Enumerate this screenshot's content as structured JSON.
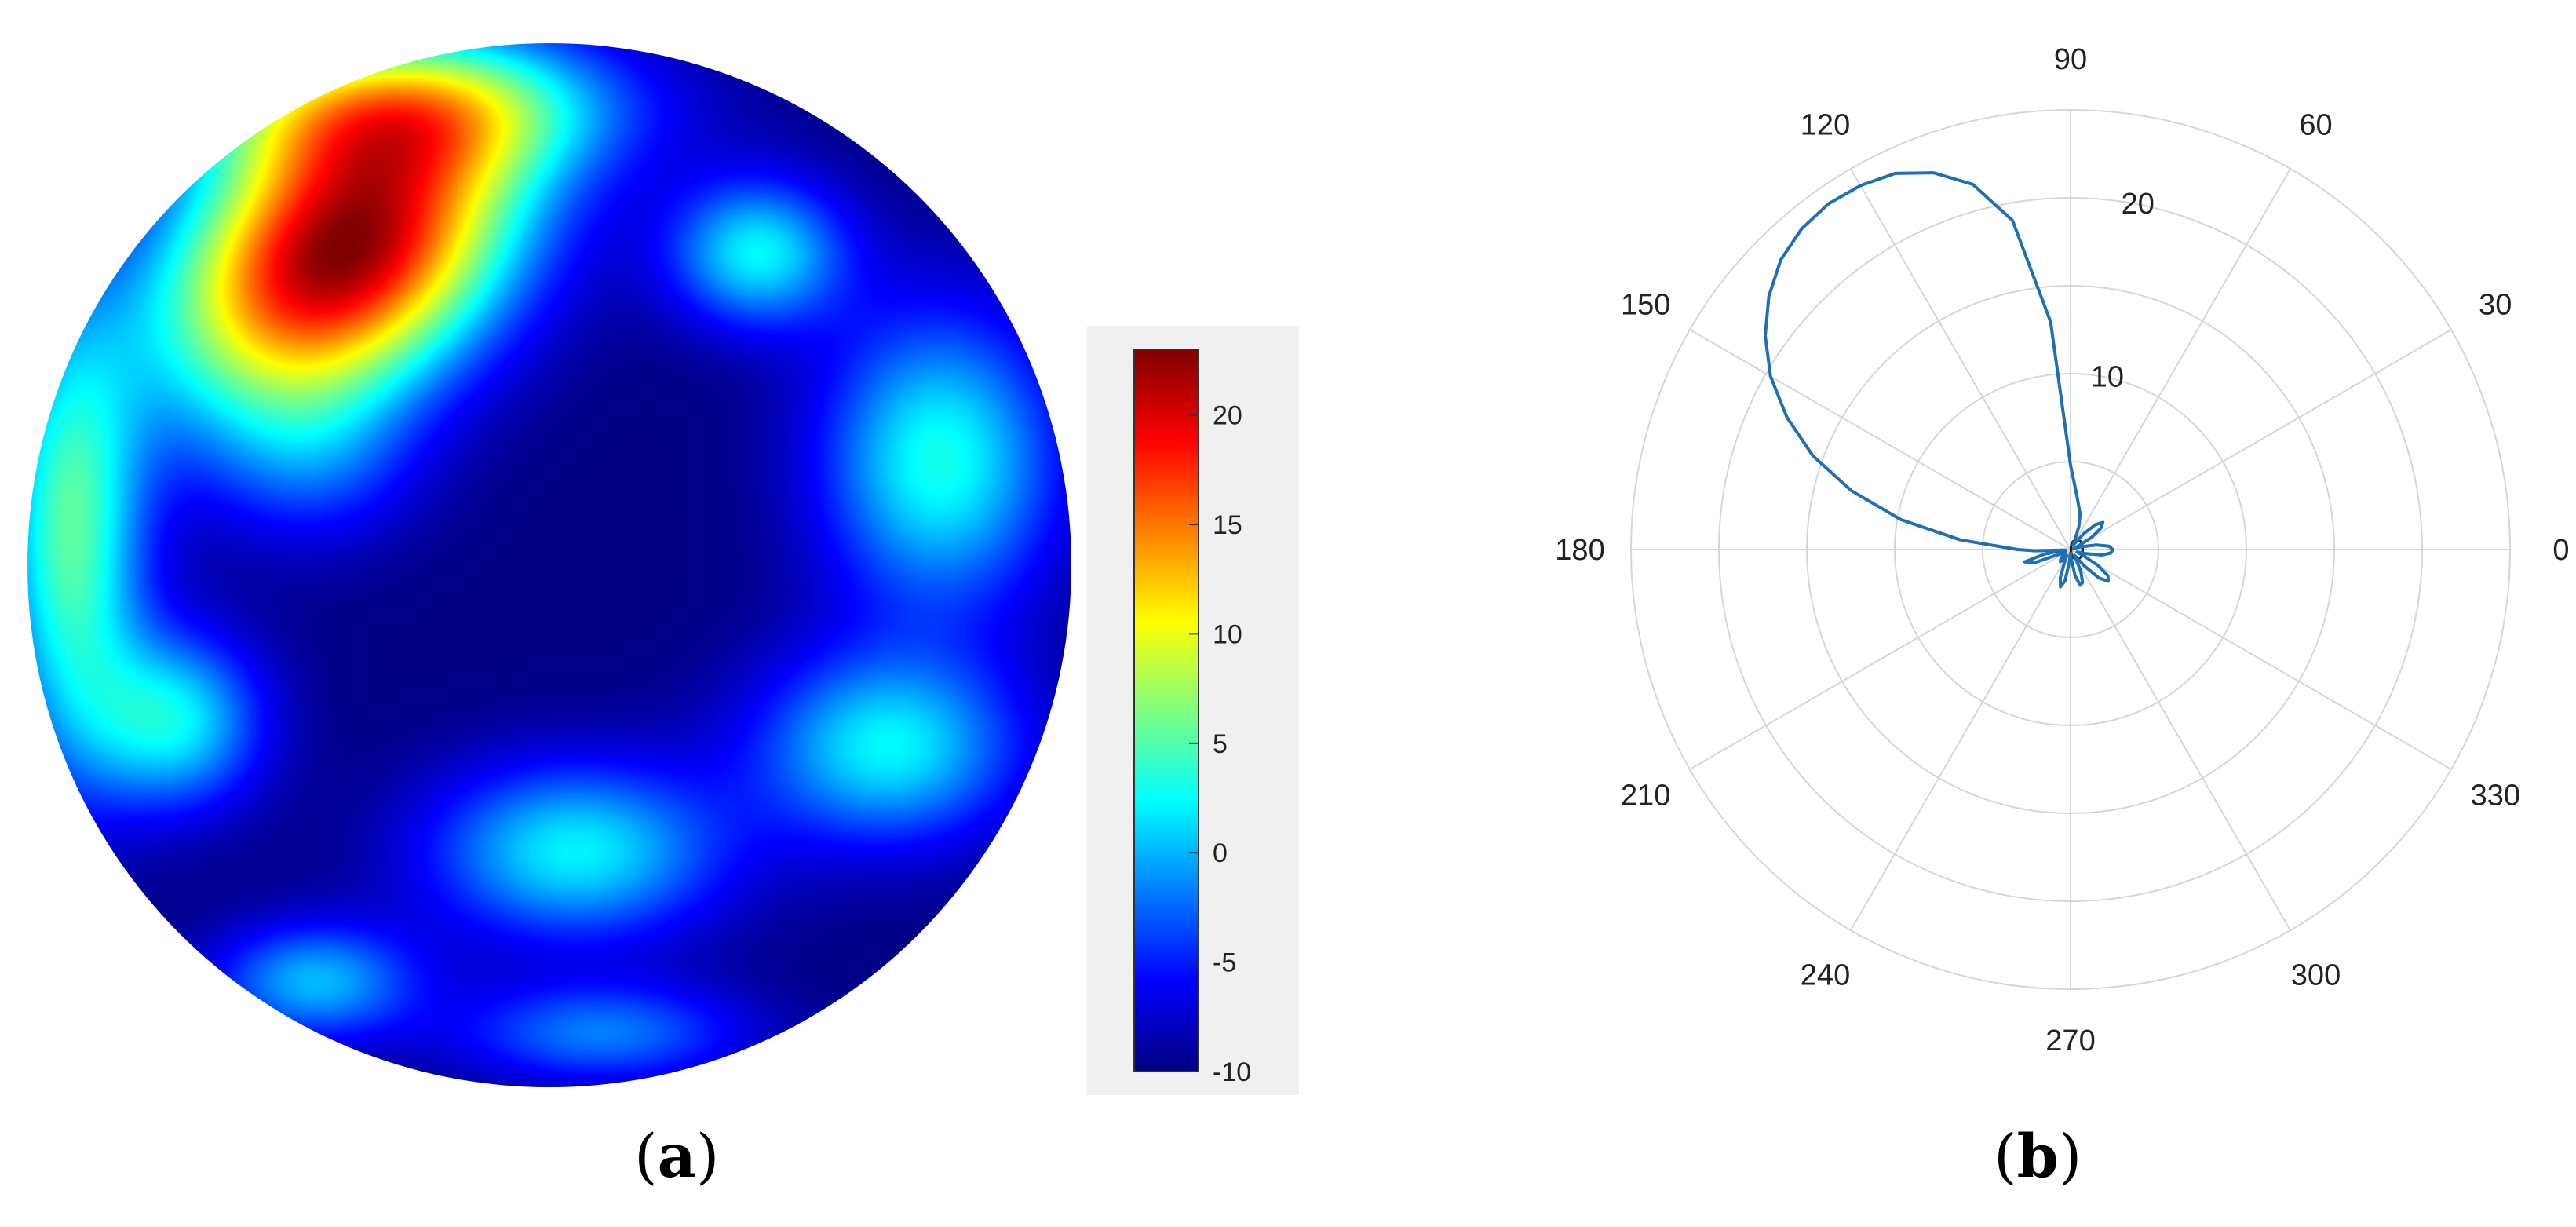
{
  "panels": {
    "a": {
      "label": "a"
    },
    "b": {
      "label": "b"
    }
  },
  "colors": {
    "polar_line": "#1f6fb5",
    "polar_grid": "#d6d6d6",
    "colorbar_bg": "#f0f0f0"
  },
  "chart_data": [
    {
      "panel": "a",
      "type": "heatmap",
      "colormap": "jet",
      "colorbar": {
        "min": -10,
        "max": 23,
        "ticks": [
          20,
          15,
          10,
          5,
          0,
          -5,
          -10
        ],
        "tick_labels": [
          "20",
          "15",
          "10",
          "5",
          "0",
          "-5",
          "-10"
        ]
      },
      "blobs": [
        {
          "u": -0.4,
          "v": -0.6,
          "sx": 0.26,
          "sy": 0.18,
          "rot": -35,
          "amp": 33
        },
        {
          "u": -0.3,
          "v": -0.88,
          "sx": 0.3,
          "sy": 0.1,
          "rot": 0,
          "amp": 14
        },
        {
          "u": -0.92,
          "v": -0.05,
          "sx": 0.1,
          "sy": 0.3,
          "rot": 0,
          "amp": 15
        },
        {
          "u": 0.4,
          "v": -0.6,
          "sx": 0.12,
          "sy": 0.1,
          "rot": 0,
          "amp": 12
        },
        {
          "u": 0.75,
          "v": -0.2,
          "sx": 0.16,
          "sy": 0.2,
          "rot": 0,
          "amp": 13
        },
        {
          "u": 0.65,
          "v": 0.35,
          "sx": 0.18,
          "sy": 0.13,
          "rot": 0,
          "amp": 12
        },
        {
          "u": 0.05,
          "v": 0.55,
          "sx": 0.2,
          "sy": 0.12,
          "rot": 0,
          "amp": 12
        },
        {
          "u": -0.72,
          "v": 0.3,
          "sx": 0.12,
          "sy": 0.12,
          "rot": 0,
          "amp": 12
        },
        {
          "u": -0.45,
          "v": 0.8,
          "sx": 0.14,
          "sy": 0.08,
          "rot": 0,
          "amp": 10
        },
        {
          "u": -0.45,
          "v": -0.2,
          "sx": 0.14,
          "sy": 0.12,
          "rot": 0,
          "amp": 5
        },
        {
          "u": 0.1,
          "v": 0.9,
          "sx": 0.2,
          "sy": 0.07,
          "rot": 0,
          "amp": 8
        }
      ],
      "background": -10
    },
    {
      "panel": "b",
      "type": "polar-line",
      "r_max": 25,
      "r_ticks": [
        0,
        10,
        20
      ],
      "r_tick_labels": [
        "0",
        "10",
        "20"
      ],
      "theta_ticks": [
        0,
        30,
        60,
        90,
        120,
        150,
        180,
        210,
        240,
        270,
        300,
        330
      ],
      "theta_tick_labels": [
        "0",
        "30",
        "60",
        "90",
        "120",
        "150",
        "180",
        "210",
        "240",
        "270",
        "300",
        "330"
      ],
      "series": [
        {
          "theta": [
            90,
            95,
            100,
            105,
            110,
            115,
            120,
            125,
            130,
            135,
            140,
            145,
            150,
            155,
            160,
            165,
            170,
            175,
            180,
            182,
            185,
            190,
            195,
            200,
            205,
            210,
            215,
            220,
            225,
            230,
            235,
            240,
            245,
            250,
            255,
            260,
            265,
            270,
            275,
            280,
            285,
            290,
            295,
            300,
            305,
            310,
            315,
            320,
            325,
            330,
            335,
            340,
            345,
            350,
            355,
            0,
            5,
            10,
            15,
            20,
            25,
            30,
            35,
            40,
            45,
            50,
            55,
            60,
            65,
            70,
            75,
            80,
            85,
            90
          ],
          "r": [
            4.8,
            13,
            19,
            21.5,
            22.8,
            23.6,
            23.9,
            24.0,
            23.8,
            23.3,
            22.4,
            21.2,
            19.7,
            17.8,
            15.6,
            12.9,
            9.8,
            6.3,
            3.0,
            2.0,
            0.3,
            1.5,
            2.7,
            2.2,
            0.4,
            0.3,
            0.4,
            0.6,
            0.8,
            0.9,
            0.7,
            0.4,
            0.8,
            1.7,
            2.2,
            1.8,
            0.7,
            0.2,
            0.6,
            1.5,
            2.1,
            2.0,
            1.4,
            0.6,
            0.4,
            1.2,
            2.3,
            2.8,
            2.6,
            1.8,
            0.8,
            0.4,
            0.9,
            1.8,
            2.3,
            2.4,
            2.2,
            1.5,
            0.6,
            0.2,
            0.5,
            1.4,
            2.1,
            2.4,
            2.0,
            1.2,
            0.4,
            0.3,
            0.6,
            1.4,
            2.1,
            2.6,
            3.4,
            4.8
          ]
        }
      ]
    }
  ]
}
